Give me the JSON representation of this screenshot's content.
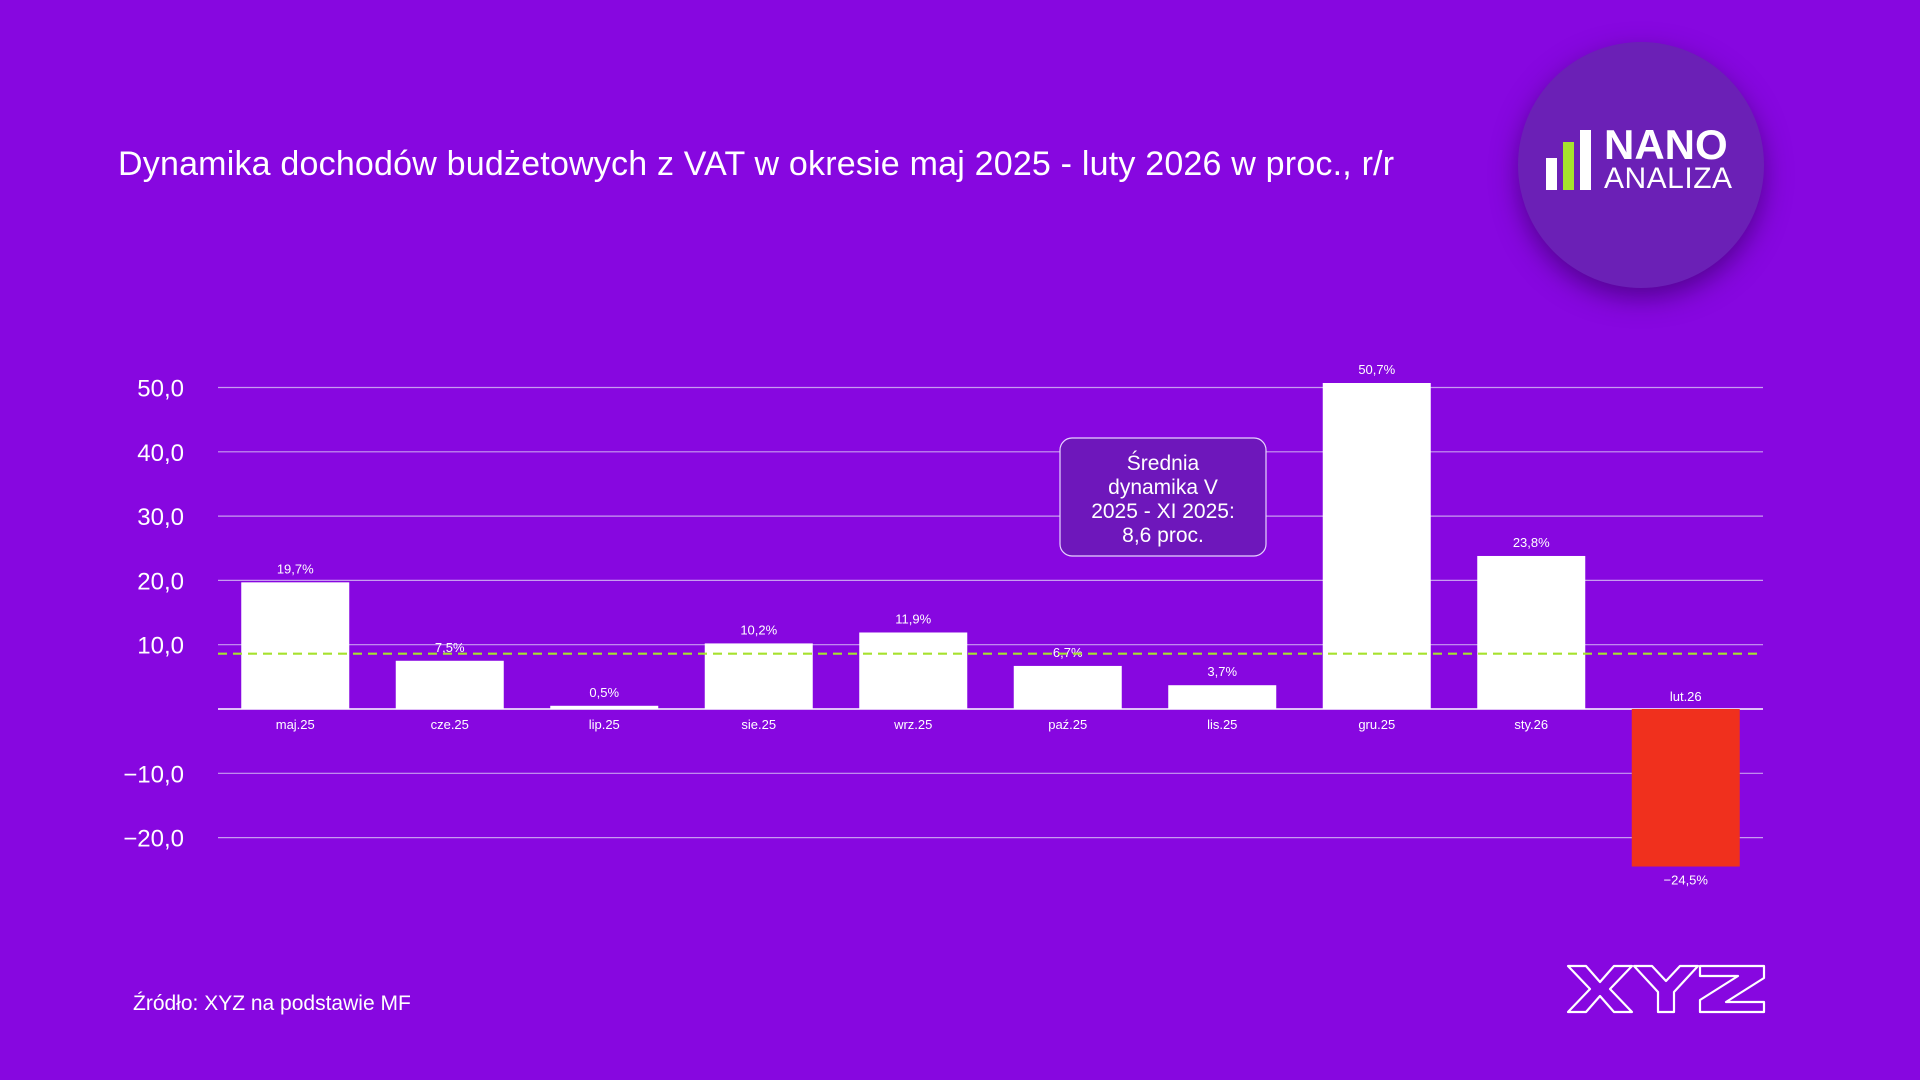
{
  "title": "Dynamika dochodów budżetowych z VAT w okresie maj 2025 - luty 2026 w proc., r/r",
  "source": "Źródło: XYZ na podstawie MF",
  "logo": {
    "line1": "NANO",
    "line2": "ANALIZA",
    "brand": "XYZ"
  },
  "colors": {
    "background": "#8707e0",
    "bar_positive": "#ffffff",
    "bar_negative": "#f0301d",
    "average_line": "#a6e22e",
    "grid": "#c89cf0"
  },
  "chart_data": {
    "type": "bar",
    "categories": [
      "maj.25",
      "cze.25",
      "lip.25",
      "sie.25",
      "wrz.25",
      "paź.25",
      "lis.25",
      "gru.25",
      "sty.26",
      "lut.26"
    ],
    "values": [
      19.7,
      7.5,
      0.5,
      10.2,
      11.9,
      6.7,
      3.7,
      50.7,
      23.8,
      -24.5
    ],
    "data_labels": [
      "19,7%",
      "7,5%",
      "0,5%",
      "10,2%",
      "11,9%",
      "6,7%",
      "3,7%",
      "50,7%",
      "23,8%",
      "−24,5%"
    ],
    "yticks": [
      50,
      40,
      30,
      20,
      10,
      -10,
      -20
    ],
    "ytick_labels": [
      "50,0",
      "40,0",
      "30,0",
      "20,0",
      "10,0",
      "−10,0",
      "−20,0"
    ],
    "ylim": [
      -25,
      51
    ],
    "grid": true,
    "average": {
      "value": 8.6,
      "label_lines": [
        "Średnia",
        "dynamika V",
        "2025 - XI 2025:",
        "8,6 proc."
      ]
    }
  }
}
